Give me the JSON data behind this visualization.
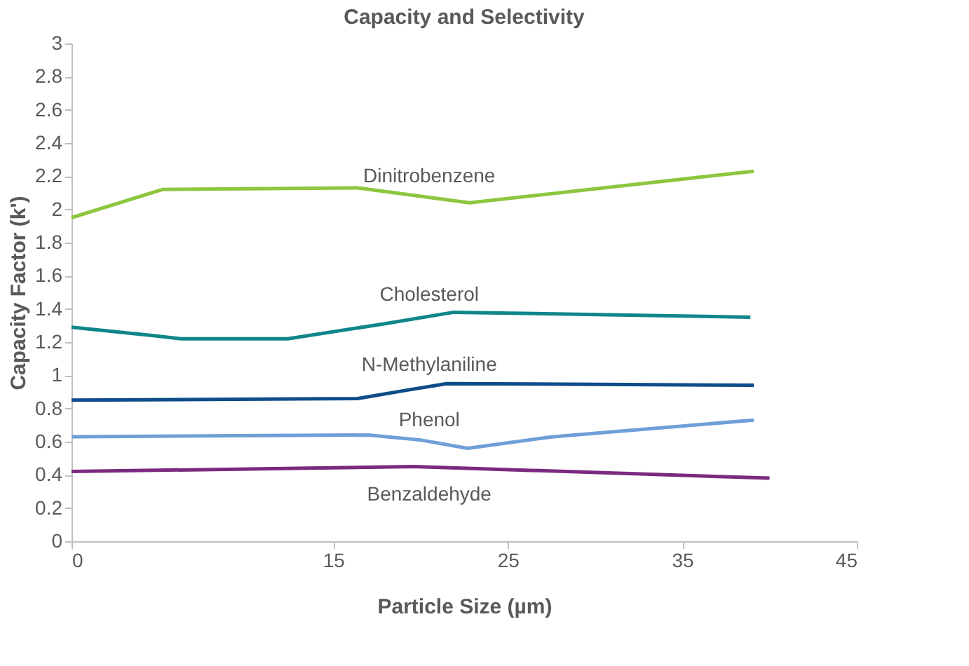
{
  "chart_data": {
    "type": "line",
    "title": "Capacity and Selectivity",
    "xlabel": "Particle Size (µm)",
    "ylabel": "Capacity Factor (k')",
    "xlim": [
      0,
      45
    ],
    "xticks": [
      0,
      15,
      25,
      35,
      45
    ],
    "ylim": [
      0,
      3
    ],
    "yticks": [
      0,
      0.2,
      0.4,
      0.6,
      0.8,
      1,
      1.2,
      1.4,
      1.6,
      1.8,
      2,
      2.2,
      2.4,
      2.6,
      2.8,
      3
    ],
    "grid": false,
    "marker": "none",
    "line_style": "solid",
    "series": [
      {
        "name": "Dinitrobenzene",
        "color": "#8dc63f",
        "x": [
          0,
          5.2,
          16.4,
          22.8,
          39.1
        ],
        "values": [
          1.95,
          2.12,
          2.13,
          2.04,
          2.23
        ]
      },
      {
        "name": "Cholesterol",
        "color": "#10868a",
        "x": [
          0,
          4.6,
          6.3,
          12.4,
          17.9,
          21.9,
          38.9
        ],
        "values": [
          1.29,
          1.24,
          1.22,
          1.22,
          1.31,
          1.38,
          1.35
        ]
      },
      {
        "name": "N-Methylaniline",
        "color": "#0f4c8a",
        "x": [
          0,
          16.4,
          19.2,
          21.5,
          39.1
        ],
        "values": [
          0.85,
          0.86,
          0.91,
          0.95,
          0.94
        ]
      },
      {
        "name": "Phenol",
        "color": "#6f9fd8",
        "x": [
          0,
          17,
          20,
          22.7,
          27.6,
          39.1
        ],
        "values": [
          0.63,
          0.64,
          0.61,
          0.56,
          0.63,
          0.73
        ]
      },
      {
        "name": "Benzaldehyde",
        "color": "#7b2a7f",
        "x": [
          0,
          19.6,
          40
        ],
        "values": [
          0.42,
          0.45,
          0.38
        ]
      }
    ]
  }
}
